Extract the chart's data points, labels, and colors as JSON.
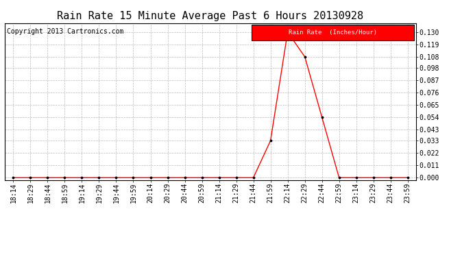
{
  "title": "Rain Rate 15 Minute Average Past 6 Hours 20130928",
  "copyright": "Copyright 2013 Cartronics.com",
  "legend_label": "Rain Rate  (Inches/Hour)",
  "legend_bg": "#ff0000",
  "legend_fg": "#ffffff",
  "x_labels": [
    "18:14",
    "18:29",
    "18:44",
    "18:59",
    "19:14",
    "19:29",
    "19:44",
    "19:59",
    "20:14",
    "20:29",
    "20:44",
    "20:59",
    "21:14",
    "21:29",
    "21:44",
    "21:59",
    "22:14",
    "22:29",
    "22:44",
    "22:59",
    "23:14",
    "23:29",
    "23:44",
    "23:59"
  ],
  "y_values": [
    0.0,
    0.0,
    0.0,
    0.0,
    0.0,
    0.0,
    0.0,
    0.0,
    0.0,
    0.0,
    0.0,
    0.0,
    0.0,
    0.0,
    0.0,
    0.033,
    0.13,
    0.108,
    0.054,
    0.0,
    0.0,
    0.0,
    0.0,
    0.0
  ],
  "y_ticks": [
    0.0,
    0.011,
    0.022,
    0.033,
    0.043,
    0.054,
    0.065,
    0.076,
    0.087,
    0.098,
    0.108,
    0.119,
    0.13
  ],
  "ylim": [
    0.0,
    0.13
  ],
  "line_color": "#ff0000",
  "marker_color": "#000000",
  "bg_color": "#ffffff",
  "plot_bg_color": "#ffffff",
  "grid_color": "#bbbbbb",
  "title_fontsize": 11,
  "tick_fontsize": 7,
  "copyright_fontsize": 7
}
